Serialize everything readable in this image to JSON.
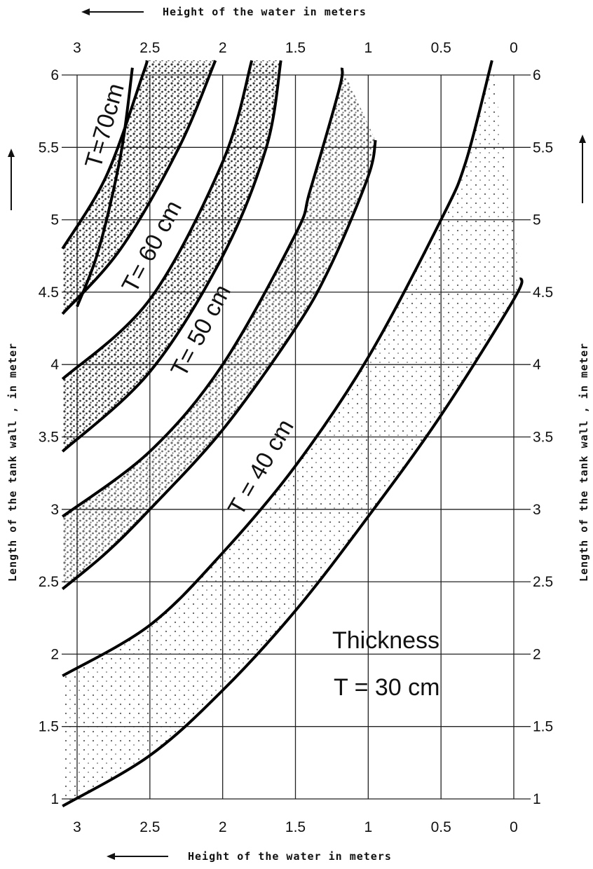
{
  "chart_data": {
    "type": "line",
    "title": "",
    "xlabel": "Height of the water in meters",
    "ylabel": "Length of the tank wall , in meter",
    "xlim": [
      3,
      0
    ],
    "ylim": [
      1,
      6
    ],
    "x_ticks": [
      "3",
      "2.5",
      "2",
      "1.5",
      "1",
      "0.5",
      "0"
    ],
    "x_tick_values": [
      3,
      2.5,
      2,
      1.5,
      1,
      0.5,
      0
    ],
    "y_ticks": [
      "6",
      "5.5",
      "5",
      "4.5",
      "4",
      "3.5",
      "3",
      "2.5",
      "2",
      "1.5",
      "1"
    ],
    "y_tick_values": [
      6,
      5.5,
      5,
      4.5,
      4,
      3.5,
      3,
      2.5,
      2,
      1.5,
      1
    ],
    "grid": true,
    "curves": [
      {
        "band": "T=30cm",
        "edge": "outer",
        "points": [
          [
            3.1,
            0.95
          ],
          [
            2.5,
            1.3
          ],
          [
            2.0,
            1.75
          ],
          [
            1.5,
            2.3
          ],
          [
            1.0,
            2.95
          ],
          [
            0.5,
            3.65
          ],
          [
            0.0,
            4.45
          ],
          [
            -0.05,
            4.6
          ]
        ]
      },
      {
        "band": "T=30cm",
        "edge": "inner",
        "points": [
          [
            3.1,
            1.85
          ],
          [
            2.5,
            2.2
          ],
          [
            2.0,
            2.7
          ],
          [
            1.5,
            3.3
          ],
          [
            1.0,
            4.05
          ],
          [
            0.5,
            5.0
          ],
          [
            0.33,
            5.4
          ],
          [
            0.15,
            6.1
          ]
        ]
      },
      {
        "band": "T=40cm",
        "edge": "outer",
        "points": [
          [
            3.1,
            2.45
          ],
          [
            2.8,
            2.7
          ],
          [
            2.5,
            3.0
          ],
          [
            2.0,
            3.55
          ],
          [
            1.5,
            4.25
          ],
          [
            1.25,
            4.7
          ],
          [
            1.0,
            5.3
          ],
          [
            0.95,
            5.55
          ]
        ]
      },
      {
        "band": "T=40cm",
        "edge": "inner",
        "points": [
          [
            3.1,
            2.95
          ],
          [
            2.5,
            3.4
          ],
          [
            2.0,
            4.0
          ],
          [
            1.5,
            4.9
          ],
          [
            1.4,
            5.2
          ],
          [
            1.2,
            5.9
          ],
          [
            1.18,
            6.05
          ]
        ]
      },
      {
        "band": "T=50cm",
        "edge": "outer",
        "points": [
          [
            3.1,
            3.4
          ],
          [
            2.5,
            3.95
          ],
          [
            2.0,
            4.75
          ],
          [
            1.7,
            5.5
          ],
          [
            1.6,
            6.1
          ]
        ]
      },
      {
        "band": "T=50cm",
        "edge": "inner",
        "points": [
          [
            3.1,
            3.9
          ],
          [
            2.5,
            4.45
          ],
          [
            2.0,
            5.4
          ],
          [
            1.8,
            6.1
          ]
        ]
      },
      {
        "band": "T=60cm",
        "edge": "outer",
        "points": [
          [
            3.1,
            4.35
          ],
          [
            2.7,
            4.8
          ],
          [
            2.3,
            5.5
          ],
          [
            2.05,
            6.1
          ]
        ]
      },
      {
        "band": "T=60cm",
        "edge": "inner",
        "points": [
          [
            3.1,
            4.8
          ],
          [
            2.8,
            5.3
          ],
          [
            2.55,
            6.0
          ],
          [
            2.52,
            6.1
          ]
        ]
      },
      {
        "band": "T=70cm",
        "edge": "outer",
        "points": [
          [
            3.0,
            4.4
          ],
          [
            2.85,
            4.8
          ],
          [
            2.7,
            5.45
          ],
          [
            2.62,
            6.05
          ]
        ]
      }
    ],
    "annotations": {
      "t70": "T=70cm",
      "t60": "T= 60 cm",
      "t50": "T= 50 cm",
      "t40": "T = 40 cm",
      "thickness": "Thickness",
      "t30": "T = 30 cm"
    }
  }
}
